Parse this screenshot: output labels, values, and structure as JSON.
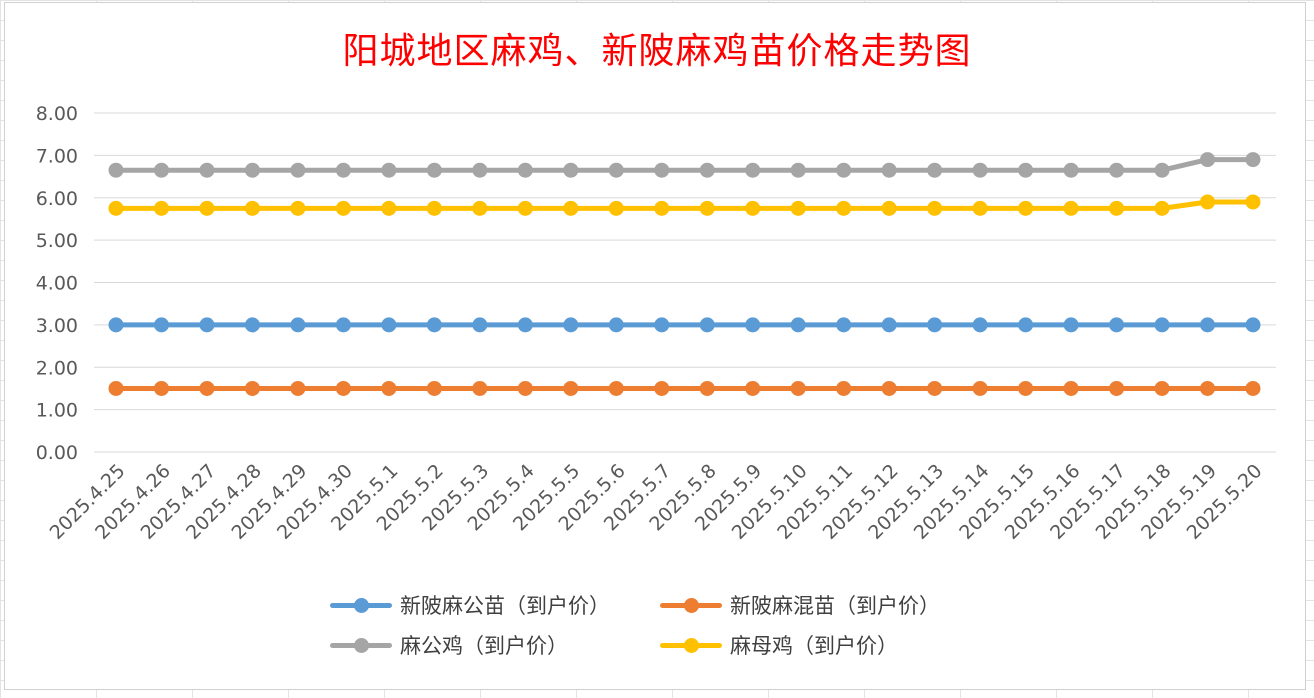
{
  "chart_data": {
    "type": "line",
    "title": "阳城地区麻鸡、新陂麻鸡苗价格走势图",
    "x": [
      "2025.4.25",
      "2025.4.26",
      "2025.4.27",
      "2025.4.28",
      "2025.4.29",
      "2025.4.30",
      "2025.5.1",
      "2025.5.2",
      "2025.5.3",
      "2025.5.4",
      "2025.5.5",
      "2025.5.6",
      "2025.5.7",
      "2025.5.8",
      "2025.5.9",
      "2025.5.10",
      "2025.5.11",
      "2025.5.12",
      "2025.5.13",
      "2025.5.14",
      "2025.5.15",
      "2025.5.16",
      "2025.5.17",
      "2025.5.18",
      "2025.5.19",
      "2025.5.20"
    ],
    "yticks": [
      "0.00",
      "1.00",
      "2.00",
      "3.00",
      "4.00",
      "5.00",
      "6.00",
      "7.00",
      "8.00"
    ],
    "ylim": [
      0,
      8
    ],
    "grid": true,
    "legend": "bottom",
    "series": [
      {
        "name": "新陂麻公苗（到户价）",
        "color": "#5b9bd5",
        "values": [
          3,
          3,
          3,
          3,
          3,
          3,
          3,
          3,
          3,
          3,
          3,
          3,
          3,
          3,
          3,
          3,
          3,
          3,
          3,
          3,
          3,
          3,
          3,
          3,
          3,
          3
        ]
      },
      {
        "name": "新陂麻混苗（到户价）",
        "color": "#ed7d31",
        "values": [
          1.5,
          1.5,
          1.5,
          1.5,
          1.5,
          1.5,
          1.5,
          1.5,
          1.5,
          1.5,
          1.5,
          1.5,
          1.5,
          1.5,
          1.5,
          1.5,
          1.5,
          1.5,
          1.5,
          1.5,
          1.5,
          1.5,
          1.5,
          1.5,
          1.5,
          1.5
        ]
      },
      {
        "name": "麻公鸡（到户价）",
        "color": "#a5a5a5",
        "values": [
          6.65,
          6.65,
          6.65,
          6.65,
          6.65,
          6.65,
          6.65,
          6.65,
          6.65,
          6.65,
          6.65,
          6.65,
          6.65,
          6.65,
          6.65,
          6.65,
          6.65,
          6.65,
          6.65,
          6.65,
          6.65,
          6.65,
          6.65,
          6.65,
          6.9,
          6.9
        ]
      },
      {
        "name": "麻母鸡（到户价）",
        "color": "#ffc000",
        "values": [
          5.75,
          5.75,
          5.75,
          5.75,
          5.75,
          5.75,
          5.75,
          5.75,
          5.75,
          5.75,
          5.75,
          5.75,
          5.75,
          5.75,
          5.75,
          5.75,
          5.75,
          5.75,
          5.75,
          5.75,
          5.75,
          5.75,
          5.75,
          5.75,
          5.9,
          5.9
        ]
      }
    ]
  }
}
